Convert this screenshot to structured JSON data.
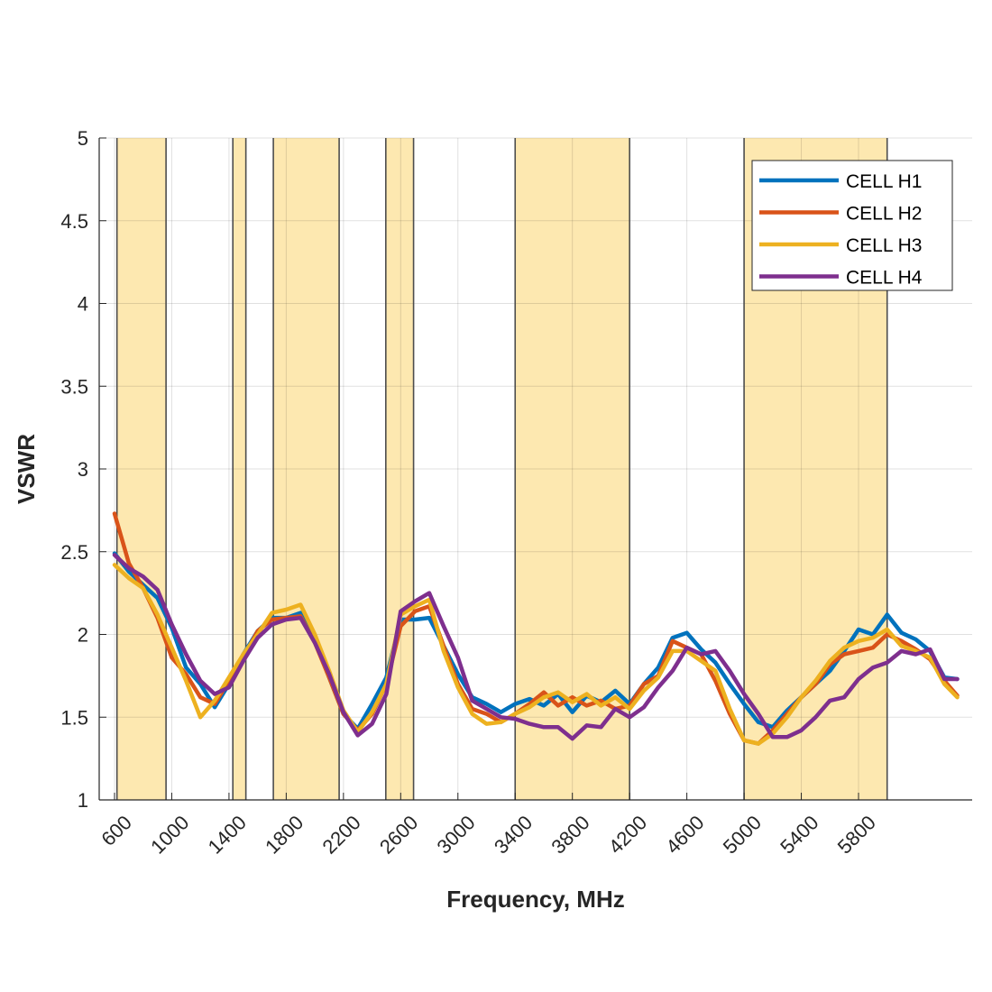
{
  "chart_data": {
    "type": "line",
    "title": "",
    "xlabel": "Frequency, MHz",
    "ylabel": "VSWR",
    "xlim": [
      490,
      6600
    ],
    "ylim": [
      1,
      5
    ],
    "grid": true,
    "xticks": [
      600,
      1000,
      1400,
      1800,
      2200,
      2600,
      3000,
      3400,
      3800,
      4200,
      4600,
      5000,
      5400,
      5800
    ],
    "xtick_labels": [
      "600",
      "1000",
      "1400",
      "1800",
      "2200",
      "2600",
      "3000",
      "3400",
      "3800",
      "4200",
      "4600",
      "5000",
      "5400",
      "5800"
    ],
    "yticks": [
      1,
      1.5,
      2,
      2.5,
      3,
      3.5,
      4,
      4.5,
      5
    ],
    "ytick_labels": [
      "1",
      "1.5",
      "2",
      "2.5",
      "3",
      "3.5",
      "4",
      "4.5",
      "5"
    ],
    "legend_position": "top-right",
    "bands": [
      [
        617,
        960
      ],
      [
        1427,
        1518
      ],
      [
        1710,
        2170
      ],
      [
        2496,
        2690
      ],
      [
        3400,
        4200
      ],
      [
        5000,
        6000
      ]
    ],
    "band_color": "#FDE8B0",
    "x": [
      600,
      700,
      800,
      900,
      1000,
      1100,
      1200,
      1300,
      1400,
      1500,
      1600,
      1700,
      1800,
      1900,
      2000,
      2100,
      2200,
      2300,
      2400,
      2500,
      2600,
      2700,
      2800,
      2900,
      3000,
      3100,
      3200,
      3300,
      3400,
      3500,
      3600,
      3700,
      3800,
      3900,
      4000,
      4100,
      4200,
      4300,
      4400,
      4500,
      4600,
      4700,
      4800,
      4900,
      5000,
      5100,
      5200,
      5300,
      5400,
      5500,
      5600,
      5700,
      5800,
      5900,
      6000,
      6100,
      6200,
      6300,
      6400,
      6490
    ],
    "series": [
      {
        "name": "CELL H1",
        "color": "#0072BD",
        "values": [
          2.49,
          2.38,
          2.3,
          2.22,
          2.04,
          1.8,
          1.7,
          1.56,
          1.7,
          1.88,
          2.02,
          2.1,
          2.1,
          2.13,
          1.96,
          1.74,
          1.52,
          1.43,
          1.58,
          1.74,
          2.09,
          2.09,
          2.1,
          1.93,
          1.76,
          1.62,
          1.58,
          1.53,
          1.58,
          1.61,
          1.57,
          1.64,
          1.53,
          1.63,
          1.59,
          1.66,
          1.58,
          1.7,
          1.8,
          1.98,
          2.01,
          1.91,
          1.83,
          1.7,
          1.58,
          1.47,
          1.44,
          1.54,
          1.62,
          1.7,
          1.78,
          1.9,
          2.03,
          2.0,
          2.12,
          2.01,
          1.97,
          1.9,
          1.74,
          1.73
        ]
      },
      {
        "name": "CELL H2",
        "color": "#D95319",
        "values": [
          2.73,
          2.43,
          2.28,
          2.1,
          1.86,
          1.76,
          1.62,
          1.58,
          1.72,
          1.86,
          2.02,
          2.09,
          2.1,
          2.11,
          1.95,
          1.74,
          1.52,
          1.42,
          1.52,
          1.7,
          2.05,
          2.14,
          2.17,
          1.93,
          1.7,
          1.55,
          1.52,
          1.47,
          1.52,
          1.58,
          1.65,
          1.57,
          1.62,
          1.57,
          1.6,
          1.55,
          1.57,
          1.7,
          1.75,
          1.96,
          1.92,
          1.88,
          1.72,
          1.52,
          1.36,
          1.34,
          1.42,
          1.52,
          1.62,
          1.7,
          1.82,
          1.88,
          1.9,
          1.92,
          2.0,
          1.96,
          1.91,
          1.85,
          1.72,
          1.63
        ]
      },
      {
        "name": "CELL H3",
        "color": "#EDB120",
        "values": [
          2.42,
          2.34,
          2.28,
          2.12,
          1.92,
          1.72,
          1.5,
          1.6,
          1.74,
          1.88,
          2.0,
          2.13,
          2.15,
          2.18,
          2.0,
          1.78,
          1.54,
          1.41,
          1.53,
          1.7,
          2.12,
          2.17,
          2.21,
          1.9,
          1.68,
          1.52,
          1.46,
          1.47,
          1.52,
          1.56,
          1.62,
          1.65,
          1.59,
          1.64,
          1.57,
          1.62,
          1.55,
          1.66,
          1.74,
          1.9,
          1.9,
          1.84,
          1.78,
          1.55,
          1.36,
          1.34,
          1.4,
          1.5,
          1.62,
          1.72,
          1.84,
          1.92,
          1.96,
          1.98,
          2.03,
          1.93,
          1.9,
          1.86,
          1.7,
          1.62
        ]
      },
      {
        "name": "CELL H4",
        "color": "#7E2F8E",
        "values": [
          2.48,
          2.4,
          2.35,
          2.27,
          2.06,
          1.88,
          1.72,
          1.64,
          1.68,
          1.84,
          1.98,
          2.06,
          2.09,
          2.1,
          1.95,
          1.76,
          1.53,
          1.39,
          1.46,
          1.64,
          2.14,
          2.2,
          2.25,
          2.05,
          1.86,
          1.6,
          1.55,
          1.5,
          1.49,
          1.46,
          1.44,
          1.44,
          1.37,
          1.45,
          1.44,
          1.55,
          1.5,
          1.56,
          1.68,
          1.78,
          1.92,
          1.88,
          1.9,
          1.78,
          1.64,
          1.52,
          1.38,
          1.38,
          1.42,
          1.5,
          1.6,
          1.62,
          1.73,
          1.8,
          1.83,
          1.9,
          1.88,
          1.91,
          1.73,
          1.73
        ]
      }
    ]
  }
}
